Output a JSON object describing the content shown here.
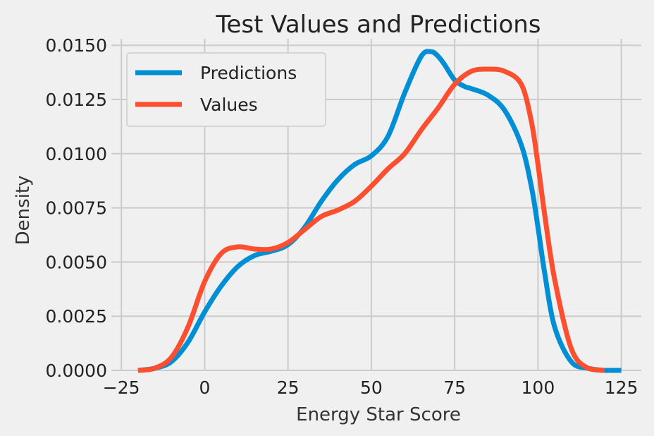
{
  "chart_data": {
    "type": "line",
    "title": "Test Values and Predictions",
    "xlabel": "Energy Star Score",
    "ylabel": "Density",
    "xlim": [
      -28,
      131
    ],
    "ylim": [
      0,
      0.0153
    ],
    "x_ticks": [
      -25,
      0,
      25,
      50,
      75,
      100,
      125
    ],
    "x_tick_labels": [
      "−25",
      "0",
      "25",
      "50",
      "75",
      "100",
      "125"
    ],
    "y_ticks": [
      0,
      0.0025,
      0.005,
      0.0075,
      0.01,
      0.0125,
      0.015
    ],
    "y_tick_labels": [
      "0.0000",
      "0.0025",
      "0.0050",
      "0.0075",
      "0.0100",
      "0.0125",
      "0.0150"
    ],
    "grid": true,
    "legend_position": "top-left",
    "series": [
      {
        "name": "Predictions",
        "color": "#008fd5",
        "x": [
          -20,
          -15,
          -10,
          -5,
          0,
          5,
          10,
          15,
          20,
          25,
          30,
          35,
          40,
          45,
          50,
          55,
          60,
          65,
          68,
          70,
          72,
          75,
          78,
          80,
          85,
          90,
          95,
          98,
          100,
          102,
          105,
          110,
          115,
          120,
          125
        ],
        "y": [
          0,
          0.0001,
          0.0004,
          0.0013,
          0.0027,
          0.0039,
          0.0048,
          0.0053,
          0.0055,
          0.0058,
          0.0066,
          0.0078,
          0.0088,
          0.0095,
          0.0099,
          0.0108,
          0.0128,
          0.0145,
          0.0147,
          0.0145,
          0.0141,
          0.0134,
          0.0131,
          0.013,
          0.0127,
          0.012,
          0.0104,
          0.0085,
          0.0066,
          0.0045,
          0.002,
          0.0004,
          0.0001,
          0.0,
          0.0
        ]
      },
      {
        "name": "Values",
        "color": "#fc4f30",
        "x": [
          -20,
          -15,
          -10,
          -5,
          0,
          5,
          10,
          15,
          20,
          25,
          30,
          35,
          40,
          45,
          50,
          55,
          60,
          65,
          70,
          75,
          80,
          85,
          90,
          95,
          98,
          100,
          102,
          105,
          110,
          115,
          120
        ],
        "y": [
          0,
          0.0001,
          0.0006,
          0.002,
          0.0041,
          0.0054,
          0.0057,
          0.0056,
          0.0056,
          0.0059,
          0.0065,
          0.0071,
          0.0074,
          0.0078,
          0.0085,
          0.0093,
          0.01,
          0.0111,
          0.0121,
          0.0132,
          0.0138,
          0.0139,
          0.0138,
          0.0132,
          0.0115,
          0.0095,
          0.0072,
          0.0042,
          0.001,
          0.0001,
          0.0
        ]
      }
    ]
  }
}
